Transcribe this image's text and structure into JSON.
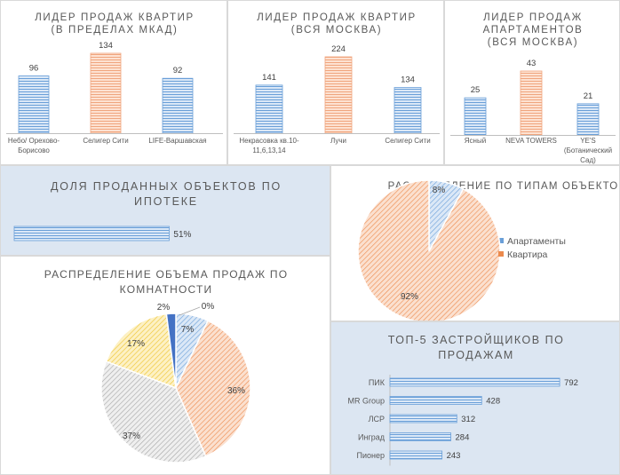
{
  "colors": {
    "blue_fill": "#dbe8f7",
    "blue_stripe": "#6a9fd8",
    "peach_fill": "#fde2d2",
    "peach_stripe": "#f0a57e",
    "orange_fill": "#fbe0cf",
    "orange_stripe": "#ec8a4c",
    "grey_fill": "#efefef",
    "grey_stripe": "#a5a5a5",
    "yellow_fill": "#fdf1c4",
    "yellow_stripe": "#eec32c",
    "navy": "#4472c4",
    "panel_blue": "#dce6f2",
    "text": "#595959"
  },
  "chart_data": [
    {
      "id": "c1",
      "type": "bar",
      "title": [
        "ЛИДЕР ПРОДАЖ  КВАРТИР",
        "(В ПРЕДЕЛАХ МКАД)"
      ],
      "categories": [
        [
          "Небо/ Орехово-",
          "Борисово"
        ],
        [
          "Селигер Сити"
        ],
        [
          "LIFE-Варшавская"
        ]
      ],
      "values": [
        96,
        134,
        92
      ],
      "highlight": [
        false,
        true,
        false
      ],
      "ylim": [
        0,
        150
      ]
    },
    {
      "id": "c2",
      "type": "bar",
      "title": [
        "ЛИДЕР ПРОДАЖ  КВАРТИР",
        "(ВСЯ МОСКВА)"
      ],
      "categories": [
        [
          "Некрасовка  кв.10-",
          "11,6,13,14"
        ],
        [
          "Лучи"
        ],
        [
          "Селигер Сити"
        ]
      ],
      "values": [
        141,
        224,
        134
      ],
      "highlight": [
        false,
        true,
        false
      ],
      "ylim": [
        0,
        240
      ]
    },
    {
      "id": "c3",
      "type": "bar",
      "title": [
        "ЛИДЕР ПРОДАЖ",
        "АПАРТАМЕНТОВ",
        "(ВСЯ МОСКВА)"
      ],
      "categories": [
        [
          "Ясный"
        ],
        [
          "NEVA TOWERS"
        ],
        [
          "YE'S",
          "(Ботанический",
          "Сад)"
        ]
      ],
      "values": [
        25,
        43,
        21
      ],
      "highlight": [
        false,
        true,
        false
      ],
      "ylim": [
        0,
        45
      ]
    },
    {
      "id": "c4",
      "type": "bar",
      "orientation": "horizontal",
      "title": [
        "ДОЛЯ ПРОДАННЫХ ОБЪЕКТОВ ПО",
        "ИПОТЕКЕ"
      ],
      "values": [
        51
      ],
      "labels": [
        "51%"
      ],
      "xlim": [
        0,
        100
      ]
    },
    {
      "id": "c5",
      "type": "pie",
      "title": [
        "РАСПРЕДЕЛЕНИЕ  ПО ТИПАМ ОБЪЕКТОВ"
      ],
      "slices": [
        {
          "name": "Апартаменты",
          "value": 8,
          "label": "8%",
          "color": "blue"
        },
        {
          "name": "Квартира",
          "value": 92,
          "label": "92%",
          "color": "orange"
        }
      ],
      "legend": "right"
    },
    {
      "id": "c6",
      "type": "pie",
      "title": [
        "РАСПРЕДЕЛЕНИЕ  ОБЪЕМА ПРОДАЖ ПО",
        "КОМНАТНОСТИ"
      ],
      "slices": [
        {
          "value": 0,
          "label": "0%",
          "color": "none"
        },
        {
          "value": 7,
          "label": "7%",
          "color": "blue"
        },
        {
          "value": 36,
          "label": "36%",
          "color": "orange"
        },
        {
          "value": 37,
          "label": "37%",
          "color": "grey"
        },
        {
          "value": 17,
          "label": "17%",
          "color": "yellow"
        },
        {
          "value": 2,
          "label": "2%",
          "color": "navy"
        }
      ]
    },
    {
      "id": "c7",
      "type": "bar",
      "orientation": "horizontal",
      "title": [
        "ТОП-5 ЗАСТРОЙЩИКОВ ПО",
        "ПРОДАЖАМ"
      ],
      "categories": [
        "ПИК",
        "MR Group",
        "ЛСР",
        "Инград",
        "Пионер"
      ],
      "values": [
        792,
        428,
        312,
        284,
        243
      ],
      "xlim": [
        0,
        800
      ]
    }
  ]
}
